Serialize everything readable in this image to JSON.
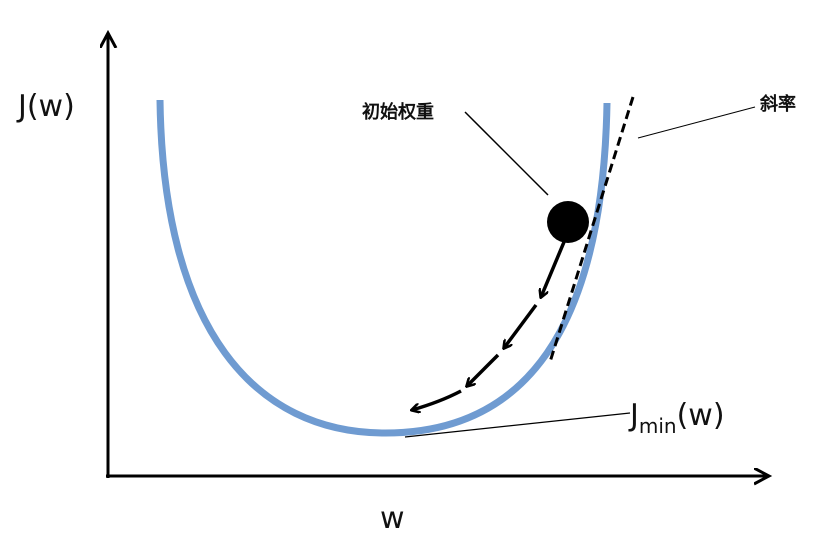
{
  "labels": {
    "y_axis": "J(w)",
    "x_axis": "w",
    "initial_weight": "初始权重",
    "slope": "斜率",
    "minimum": {
      "base": "J",
      "subscript": "min",
      "suffix": "(w)"
    }
  }
}
